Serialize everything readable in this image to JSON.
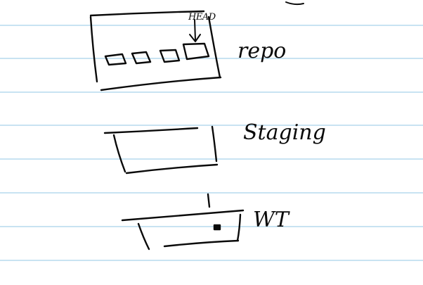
{
  "diagram": {
    "labels": {
      "repo": "repo",
      "staging": "Staging",
      "working_tree": "WT",
      "head": "HEAD"
    },
    "repo_commit_count": 4
  },
  "colors": {
    "paper": "#ffffff",
    "ruled_line": "#a8d2ea",
    "ink": "#0a0a0a"
  }
}
